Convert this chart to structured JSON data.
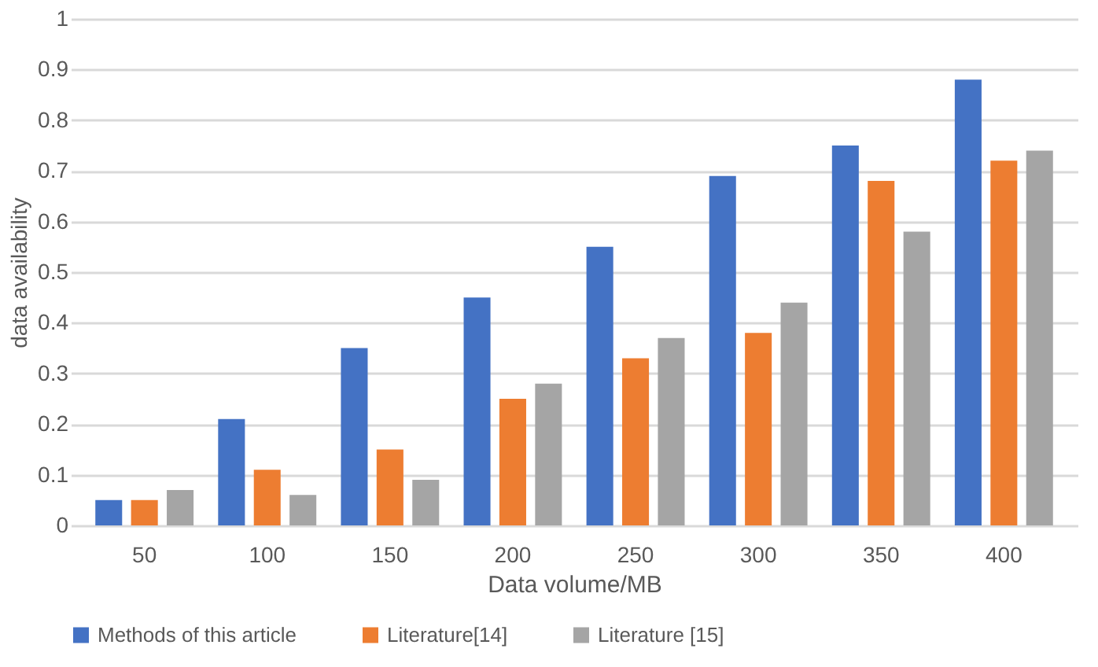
{
  "chart_data": {
    "type": "bar",
    "xlabel": "Data volume/MB",
    "ylabel": "data availability",
    "categories": [
      "50",
      "100",
      "150",
      "200",
      "250",
      "300",
      "350",
      "400"
    ],
    "series": [
      {
        "name": "Methods of this article",
        "color": "#4472c4",
        "values": [
          0.05,
          0.21,
          0.35,
          0.45,
          0.55,
          0.69,
          0.75,
          0.88
        ]
      },
      {
        "name": "Literature[14]",
        "color": "#ed7d31",
        "values": [
          0.05,
          0.11,
          0.15,
          0.25,
          0.33,
          0.38,
          0.68,
          0.72
        ]
      },
      {
        "name": "Literature [15]",
        "color": "#a5a5a5",
        "values": [
          0.07,
          0.06,
          0.09,
          0.28,
          0.37,
          0.44,
          0.58,
          0.74
        ]
      }
    ],
    "ylim": [
      0,
      1
    ],
    "yticks": [
      0,
      0.1,
      0.2,
      0.3,
      0.4,
      0.5,
      0.6,
      0.7,
      0.8,
      0.9,
      1
    ],
    "grid": "y",
    "legend": "bottom"
  }
}
